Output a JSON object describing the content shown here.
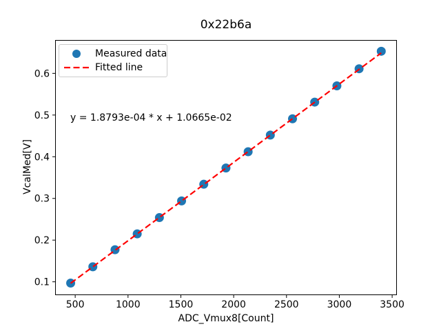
{
  "chart_data": {
    "type": "scatter",
    "title": "0x22b6a",
    "xlabel": "ADC_Vmux8[Count]",
    "ylabel": "VcalMed[V]",
    "xlim": [
      310,
      3545
    ],
    "ylim": [
      0.068,
      0.68
    ],
    "xticks": [
      500,
      1000,
      1500,
      2000,
      2500,
      3000,
      3500
    ],
    "yticks": [
      0.1,
      0.2,
      0.3,
      0.4,
      0.5,
      0.6
    ],
    "grid": false,
    "legend_position": "upper left",
    "annotation": "y = 1.8793e-04 * x + 1.0665e-02",
    "series": [
      {
        "name": "Measured data",
        "type": "scatter",
        "color": "#1f77b4",
        "x": [
          457,
          667,
          877,
          1087,
          1297,
          1507,
          1717,
          1927,
          2137,
          2347,
          2557,
          2767,
          2977,
          3187,
          3397
        ],
        "y": [
          0.097,
          0.136,
          0.177,
          0.215,
          0.254,
          0.294,
          0.334,
          0.373,
          0.412,
          0.452,
          0.491,
          0.531,
          0.57,
          0.611,
          0.653
        ]
      },
      {
        "name": "Fitted line",
        "type": "line",
        "style": "dashed",
        "color": "#ff0000",
        "slope": 0.00018793,
        "intercept": 0.010665,
        "x_start": 457,
        "x_end": 3397
      }
    ]
  }
}
